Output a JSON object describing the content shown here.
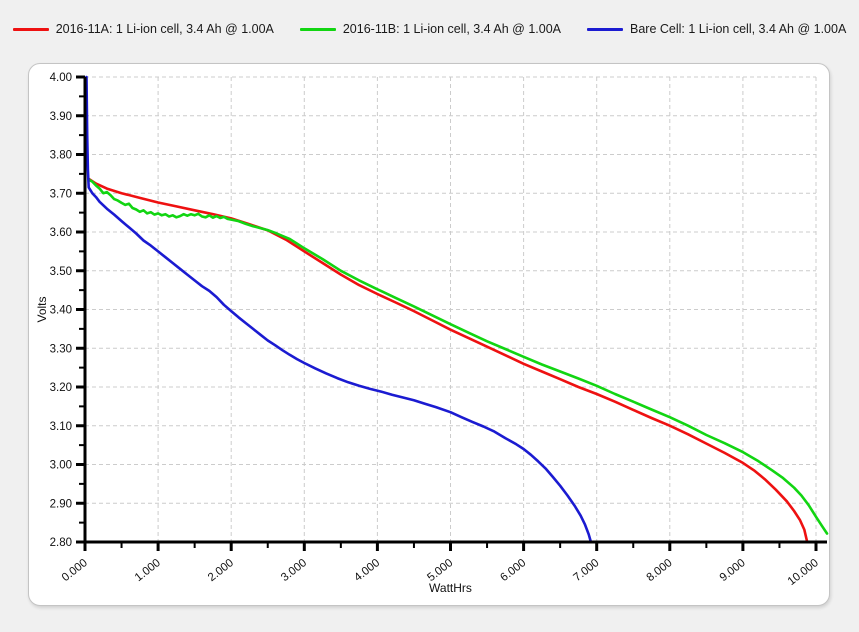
{
  "page": {
    "background_color": "#f0f0f0",
    "panel_color": "#ffffff"
  },
  "legend": {
    "position": "top-center",
    "items": [
      {
        "label": "2016-11A: 1 Li-ion cell, 3.4 Ah @ 1.00A",
        "color": "#ee1111",
        "swatch": "red-line"
      },
      {
        "label": "2016-11B: 1 Li-ion cell, 3.4 Ah @ 1.00A",
        "color": "#12d512",
        "swatch": "green-line"
      },
      {
        "label": "Bare Cell: 1 Li-ion cell, 3.4 Ah @ 1.00A",
        "color": "#1b1bd1",
        "swatch": "blue-line"
      }
    ]
  },
  "chart_data": {
    "type": "line",
    "title": "",
    "xlabel": "WattHrs",
    "ylabel": "Volts",
    "xlim": [
      0,
      10
    ],
    "ylim": [
      2.8,
      4.0
    ],
    "x_major_step": 1.0,
    "x_minor_step": 0.5,
    "y_major_step": 0.1,
    "y_minor_step": 0.05,
    "x_tick_labels": [
      "0.000",
      "1.000",
      "2.000",
      "3.000",
      "4.000",
      "5.000",
      "6.000",
      "7.000",
      "8.000",
      "9.000",
      "10.000"
    ],
    "y_tick_labels": [
      "4.00",
      "3.90",
      "3.80",
      "3.70",
      "3.60",
      "3.50",
      "3.40",
      "3.30",
      "3.20",
      "3.10",
      "3.00",
      "2.90",
      "2.80"
    ],
    "grid": true,
    "grid_style": "dashed",
    "grid_color": "#cccccc",
    "axis_color": "#000000",
    "legend_position": "top",
    "series": [
      {
        "name": "2016-11A: 1 Li-ion cell, 3.4 Ah @ 1.00A",
        "color": "#ee1111",
        "points": [
          [
            0.05,
            3.737
          ],
          [
            0.15,
            3.725
          ],
          [
            0.3,
            3.712
          ],
          [
            0.5,
            3.7
          ],
          [
            0.75,
            3.688
          ],
          [
            1.0,
            3.676
          ],
          [
            1.25,
            3.666
          ],
          [
            1.5,
            3.656
          ],
          [
            1.75,
            3.646
          ],
          [
            2.0,
            3.635
          ],
          [
            2.25,
            3.62
          ],
          [
            2.5,
            3.604
          ],
          [
            2.75,
            3.58
          ],
          [
            3.0,
            3.55
          ],
          [
            3.25,
            3.52
          ],
          [
            3.5,
            3.49
          ],
          [
            3.75,
            3.463
          ],
          [
            4.0,
            3.44
          ],
          [
            4.25,
            3.418
          ],
          [
            4.5,
            3.396
          ],
          [
            4.75,
            3.372
          ],
          [
            5.0,
            3.348
          ],
          [
            5.25,
            3.326
          ],
          [
            5.5,
            3.304
          ],
          [
            5.75,
            3.282
          ],
          [
            6.0,
            3.26
          ],
          [
            6.25,
            3.24
          ],
          [
            6.5,
            3.22
          ],
          [
            6.75,
            3.2
          ],
          [
            7.0,
            3.182
          ],
          [
            7.25,
            3.162
          ],
          [
            7.5,
            3.141
          ],
          [
            7.75,
            3.12
          ],
          [
            8.0,
            3.1
          ],
          [
            8.25,
            3.078
          ],
          [
            8.5,
            3.054
          ],
          [
            8.75,
            3.03
          ],
          [
            9.0,
            3.004
          ],
          [
            9.15,
            2.985
          ],
          [
            9.3,
            2.962
          ],
          [
            9.45,
            2.935
          ],
          [
            9.6,
            2.905
          ],
          [
            9.7,
            2.88
          ],
          [
            9.78,
            2.857
          ],
          [
            9.84,
            2.832
          ],
          [
            9.88,
            2.8
          ]
        ]
      },
      {
        "name": "2016-11B: 1 Li-ion cell, 3.4 Ah @ 1.00A",
        "color": "#12d512",
        "points": [
          [
            0.05,
            3.735
          ],
          [
            0.1,
            3.73
          ],
          [
            0.15,
            3.72
          ],
          [
            0.2,
            3.712
          ],
          [
            0.25,
            3.7
          ],
          [
            0.3,
            3.703
          ],
          [
            0.35,
            3.695
          ],
          [
            0.4,
            3.685
          ],
          [
            0.45,
            3.681
          ],
          [
            0.5,
            3.675
          ],
          [
            0.55,
            3.67
          ],
          [
            0.6,
            3.673
          ],
          [
            0.65,
            3.662
          ],
          [
            0.7,
            3.658
          ],
          [
            0.75,
            3.652
          ],
          [
            0.8,
            3.656
          ],
          [
            0.85,
            3.648
          ],
          [
            0.9,
            3.651
          ],
          [
            0.95,
            3.645
          ],
          [
            1.0,
            3.648
          ],
          [
            1.05,
            3.643
          ],
          [
            1.1,
            3.646
          ],
          [
            1.15,
            3.64
          ],
          [
            1.2,
            3.643
          ],
          [
            1.25,
            3.638
          ],
          [
            1.3,
            3.641
          ],
          [
            1.35,
            3.646
          ],
          [
            1.4,
            3.642
          ],
          [
            1.45,
            3.646
          ],
          [
            1.5,
            3.643
          ],
          [
            1.55,
            3.647
          ],
          [
            1.6,
            3.64
          ],
          [
            1.65,
            3.638
          ],
          [
            1.7,
            3.643
          ],
          [
            1.75,
            3.637
          ],
          [
            1.8,
            3.641
          ],
          [
            1.85,
            3.636
          ],
          [
            1.9,
            3.639
          ],
          [
            1.95,
            3.634
          ],
          [
            2.0,
            3.632
          ],
          [
            2.1,
            3.628
          ],
          [
            2.2,
            3.621
          ],
          [
            2.3,
            3.615
          ],
          [
            2.4,
            3.61
          ],
          [
            2.5,
            3.605
          ],
          [
            2.6,
            3.598
          ],
          [
            2.7,
            3.59
          ],
          [
            2.8,
            3.582
          ],
          [
            2.9,
            3.57
          ],
          [
            3.0,
            3.558
          ],
          [
            3.25,
            3.53
          ],
          [
            3.5,
            3.5
          ],
          [
            3.75,
            3.475
          ],
          [
            4.0,
            3.452
          ],
          [
            4.25,
            3.43
          ],
          [
            4.5,
            3.408
          ],
          [
            4.75,
            3.385
          ],
          [
            5.0,
            3.362
          ],
          [
            5.25,
            3.34
          ],
          [
            5.5,
            3.318
          ],
          [
            5.75,
            3.298
          ],
          [
            6.0,
            3.278
          ],
          [
            6.25,
            3.258
          ],
          [
            6.5,
            3.24
          ],
          [
            6.75,
            3.222
          ],
          [
            7.0,
            3.203
          ],
          [
            7.25,
            3.182
          ],
          [
            7.5,
            3.162
          ],
          [
            7.75,
            3.142
          ],
          [
            8.0,
            3.122
          ],
          [
            8.25,
            3.1
          ],
          [
            8.5,
            3.076
          ],
          [
            8.75,
            3.055
          ],
          [
            9.0,
            3.032
          ],
          [
            9.2,
            3.01
          ],
          [
            9.4,
            2.985
          ],
          [
            9.55,
            2.965
          ],
          [
            9.7,
            2.94
          ],
          [
            9.8,
            2.92
          ],
          [
            9.9,
            2.895
          ],
          [
            10.0,
            2.865
          ],
          [
            10.08,
            2.842
          ],
          [
            10.15,
            2.822
          ]
        ]
      },
      {
        "name": "Bare Cell: 1 Li-ion cell, 3.4 Ah @ 1.00A",
        "color": "#1b1bd1",
        "points": [
          [
            0.02,
            4.0
          ],
          [
            0.03,
            3.85
          ],
          [
            0.04,
            3.76
          ],
          [
            0.05,
            3.715
          ],
          [
            0.1,
            3.7
          ],
          [
            0.15,
            3.69
          ],
          [
            0.2,
            3.678
          ],
          [
            0.3,
            3.66
          ],
          [
            0.4,
            3.645
          ],
          [
            0.5,
            3.628
          ],
          [
            0.6,
            3.612
          ],
          [
            0.7,
            3.596
          ],
          [
            0.8,
            3.578
          ],
          [
            0.9,
            3.565
          ],
          [
            1.0,
            3.55
          ],
          [
            1.1,
            3.535
          ],
          [
            1.2,
            3.52
          ],
          [
            1.3,
            3.505
          ],
          [
            1.4,
            3.49
          ],
          [
            1.5,
            3.475
          ],
          [
            1.6,
            3.46
          ],
          [
            1.7,
            3.448
          ],
          [
            1.8,
            3.432
          ],
          [
            1.9,
            3.412
          ],
          [
            2.0,
            3.396
          ],
          [
            2.1,
            3.38
          ],
          [
            2.2,
            3.365
          ],
          [
            2.3,
            3.35
          ],
          [
            2.4,
            3.335
          ],
          [
            2.5,
            3.32
          ],
          [
            2.6,
            3.308
          ],
          [
            2.7,
            3.295
          ],
          [
            2.8,
            3.283
          ],
          [
            2.9,
            3.272
          ],
          [
            3.0,
            3.262
          ],
          [
            3.15,
            3.248
          ],
          [
            3.3,
            3.235
          ],
          [
            3.45,
            3.223
          ],
          [
            3.6,
            3.212
          ],
          [
            3.75,
            3.203
          ],
          [
            3.9,
            3.195
          ],
          [
            4.05,
            3.188
          ],
          [
            4.2,
            3.18
          ],
          [
            4.35,
            3.173
          ],
          [
            4.5,
            3.166
          ],
          [
            4.65,
            3.157
          ],
          [
            4.8,
            3.148
          ],
          [
            5.0,
            3.135
          ],
          [
            5.15,
            3.122
          ],
          [
            5.3,
            3.11
          ],
          [
            5.45,
            3.098
          ],
          [
            5.6,
            3.085
          ],
          [
            5.75,
            3.068
          ],
          [
            5.9,
            3.052
          ],
          [
            6.0,
            3.04
          ],
          [
            6.1,
            3.025
          ],
          [
            6.2,
            3.008
          ],
          [
            6.3,
            2.99
          ],
          [
            6.4,
            2.968
          ],
          [
            6.5,
            2.945
          ],
          [
            6.6,
            2.92
          ],
          [
            6.7,
            2.893
          ],
          [
            6.78,
            2.868
          ],
          [
            6.84,
            2.845
          ],
          [
            6.89,
            2.82
          ],
          [
            6.92,
            2.8
          ]
        ]
      }
    ]
  }
}
